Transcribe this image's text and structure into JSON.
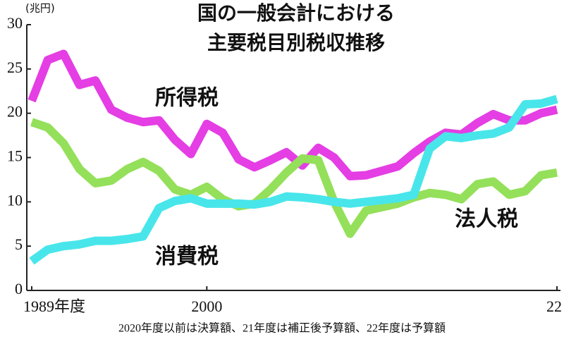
{
  "chart_data": {
    "type": "line",
    "title": [
      "国の一般会計における",
      "主要税目別税収推移"
    ],
    "y_unit": "(兆円)",
    "note": "2020年度以前は決算額、21年度は補正後予算額、22年度は予算額",
    "x": [
      1989,
      1990,
      1991,
      1992,
      1993,
      1994,
      1995,
      1996,
      1997,
      1998,
      1999,
      2000,
      2001,
      2002,
      2003,
      2004,
      2005,
      2006,
      2007,
      2008,
      2009,
      2010,
      2011,
      2012,
      2013,
      2014,
      2015,
      2016,
      2017,
      2018,
      2019,
      2020,
      2021,
      2022
    ],
    "series": [
      {
        "name": "所得税",
        "color": "#e43ee4",
        "label_color": "#d22ad2",
        "values": [
          21.4,
          26.0,
          26.7,
          23.2,
          23.7,
          20.4,
          19.5,
          19.0,
          19.2,
          17.0,
          15.4,
          18.8,
          17.8,
          14.8,
          13.9,
          14.7,
          15.6,
          14.1,
          16.1,
          15.0,
          12.9,
          13.0,
          13.5,
          14.0,
          15.5,
          16.8,
          17.8,
          17.6,
          18.9,
          19.9,
          19.2,
          19.2,
          20.0,
          20.4
        ]
      },
      {
        "name": "法人税",
        "color": "#94e05a",
        "label_color": "#7ccc3c",
        "values": [
          19.0,
          18.4,
          16.6,
          13.7,
          12.1,
          12.4,
          13.7,
          14.5,
          13.5,
          11.4,
          10.8,
          11.7,
          10.3,
          9.5,
          9.8,
          11.4,
          13.3,
          14.9,
          14.7,
          10.0,
          6.4,
          9.0,
          9.4,
          9.8,
          10.5,
          11.0,
          10.8,
          10.3,
          12.0,
          12.3,
          10.8,
          11.2,
          13.0,
          13.3
        ]
      },
      {
        "name": "消費税",
        "color": "#48e6ea",
        "label_color": "#2cd0d8",
        "values": [
          3.3,
          4.6,
          5.0,
          5.2,
          5.6,
          5.6,
          5.8,
          6.1,
          9.3,
          10.1,
          10.4,
          9.8,
          9.8,
          9.8,
          9.7,
          10.0,
          10.6,
          10.5,
          10.3,
          10.0,
          9.8,
          10.0,
          10.2,
          10.4,
          10.8,
          16.0,
          17.4,
          17.2,
          17.5,
          17.7,
          18.4,
          21.0,
          21.1,
          21.6
        ]
      }
    ],
    "xlim": [
      1989,
      2022
    ],
    "xticks": [
      {
        "value": 1989,
        "label": "1989年度"
      },
      2000,
      {
        "value": 2022,
        "label": "22"
      }
    ],
    "ylim": [
      0,
      30
    ],
    "yticks": [
      0,
      5,
      10,
      15,
      20,
      25,
      30
    ]
  }
}
